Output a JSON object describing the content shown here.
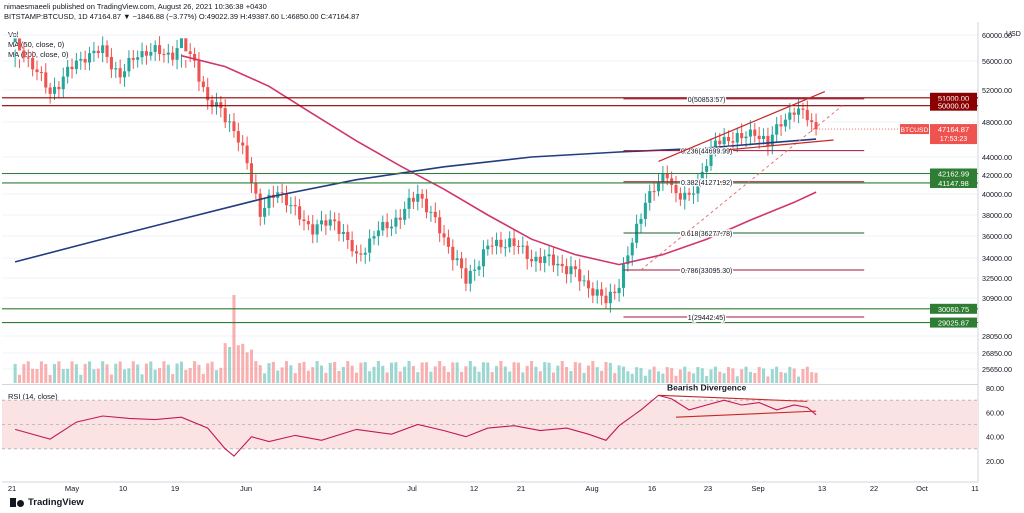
{
  "header": {
    "publisher_line": "nimaesmaeeli published on TradingView.com, August 26, 2021 10:36:38 +0430",
    "symbol_line": "BITSTAMP:BTCUSD, 1D  47164.87  ▼ −1846.88 (−3.77%)  O:49022.39  H:49387.60  L:46850.00  C:47164.87"
  },
  "indicators": {
    "vol": "Vol",
    "ma50": "MA (50, close, 0)",
    "ma200": "MA (200, close, 0)",
    "rsi": "RSI (14, close)"
  },
  "footer": {
    "logo_text": "TradingView"
  },
  "colors": {
    "up": "#26a69a",
    "down": "#ef5350",
    "ma50": "#d0356b",
    "ma200": "#233c80",
    "hline_red": "#8b0000",
    "hline_green": "#2e7d32",
    "fib_green": "#1b5e20",
    "fib_red": "#a0143c",
    "rsi_line": "#c2185b",
    "rsi_band": "#fbe3e3"
  },
  "chart_data": {
    "type": "candlestick",
    "price_axis": {
      "currency": "USD",
      "ticks": [
        60000,
        56000,
        52000,
        48000,
        44000,
        42000,
        40000,
        38000,
        36000,
        34000,
        32500,
        30900,
        28050,
        26850,
        25650
      ]
    },
    "time_axis": [
      "21",
      "May",
      "10",
      "19",
      "Jun",
      "14",
      "Jul",
      "12",
      "21",
      "Aug",
      "16",
      "23",
      "Sep",
      "13",
      "22",
      "Oct",
      "11"
    ],
    "horizontal_levels": [
      {
        "label": "51000.00",
        "price": 51000,
        "kind": "red"
      },
      {
        "label": "50000.00",
        "price": 50000,
        "kind": "red"
      },
      {
        "label": "42162.99",
        "price": 42162.99,
        "kind": "green"
      },
      {
        "label": "41147.98",
        "price": 41147.98,
        "kind": "green"
      },
      {
        "label": "30060.75",
        "price": 30060.75,
        "kind": "green"
      },
      {
        "label": "29025.87",
        "price": 29025.87,
        "kind": "green"
      }
    ],
    "fibonacci": [
      {
        "label": "0(50853.57)",
        "price": 50853.57
      },
      {
        "label": "0.236(44699.99)",
        "price": 44699.99
      },
      {
        "label": "0.382(41271.92)",
        "price": 41271.92
      },
      {
        "label": "0.618(36277.78)",
        "price": 36277.78
      },
      {
        "label": "0.786(33095.30)",
        "price": 33095.3
      },
      {
        "label": "1(29442.45)",
        "price": 29442.45
      }
    ],
    "last_price": {
      "label": "BTCUSD",
      "value": "47164.87",
      "countdown": "17:53:23"
    },
    "ohlc_points": [
      {
        "d": -8,
        "c": 58400
      },
      {
        "d": -4,
        "c": 55500
      },
      {
        "d": 0,
        "c": 51500
      },
      {
        "d": 4,
        "c": 54500
      },
      {
        "d": 8,
        "c": 56800
      },
      {
        "d": 12,
        "c": 57600
      },
      {
        "d": 16,
        "c": 53800
      },
      {
        "d": 20,
        "c": 57200
      },
      {
        "d": 24,
        "c": 57400
      },
      {
        "d": 28,
        "c": 57000
      },
      {
        "d": 30,
        "c": 58600
      },
      {
        "d": 33,
        "c": 56000
      },
      {
        "d": 36,
        "c": 50200
      },
      {
        "d": 39,
        "c": 49800
      },
      {
        "d": 42,
        "c": 46800
      },
      {
        "d": 45,
        "c": 43500
      },
      {
        "d": 48,
        "c": 38000
      },
      {
        "d": 52,
        "c": 40500
      },
      {
        "d": 56,
        "c": 38200
      },
      {
        "d": 60,
        "c": 36700
      },
      {
        "d": 65,
        "c": 37500
      },
      {
        "d": 70,
        "c": 34000
      },
      {
        "d": 75,
        "c": 36500
      },
      {
        "d": 80,
        "c": 37800
      },
      {
        "d": 84,
        "c": 40200
      },
      {
        "d": 90,
        "c": 35800
      },
      {
        "d": 95,
        "c": 32200
      },
      {
        "d": 100,
        "c": 35000
      },
      {
        "d": 105,
        "c": 35500
      },
      {
        "d": 110,
        "c": 34000
      },
      {
        "d": 115,
        "c": 33800
      },
      {
        "d": 120,
        "c": 32800
      },
      {
        "d": 125,
        "c": 31200
      },
      {
        "d": 127,
        "c": 30600
      },
      {
        "d": 130,
        "c": 32100
      },
      {
        "d": 133,
        "c": 35300
      },
      {
        "d": 136,
        "c": 39500
      },
      {
        "d": 139,
        "c": 41000
      },
      {
        "d": 141,
        "c": 42200
      },
      {
        "d": 143,
        "c": 40000
      },
      {
        "d": 146,
        "c": 39500
      },
      {
        "d": 149,
        "c": 42500
      },
      {
        "d": 152,
        "c": 45500
      },
      {
        "d": 155,
        "c": 46200
      },
      {
        "d": 158,
        "c": 46000
      },
      {
        "d": 161,
        "c": 47000
      },
      {
        "d": 164,
        "c": 45300
      },
      {
        "d": 167,
        "c": 48200
      },
      {
        "d": 170,
        "c": 49200
      },
      {
        "d": 173,
        "c": 48900
      },
      {
        "d": 175,
        "c": 47165
      }
    ],
    "ma50_points": [
      {
        "d": 30,
        "v": 56800
      },
      {
        "d": 40,
        "v": 55200
      },
      {
        "d": 50,
        "v": 52500
      },
      {
        "d": 60,
        "v": 49000
      },
      {
        "d": 70,
        "v": 45800
      },
      {
        "d": 80,
        "v": 43000
      },
      {
        "d": 90,
        "v": 40500
      },
      {
        "d": 100,
        "v": 38000
      },
      {
        "d": 110,
        "v": 35700
      },
      {
        "d": 120,
        "v": 34300
      },
      {
        "d": 130,
        "v": 33500
      },
      {
        "d": 140,
        "v": 34300
      },
      {
        "d": 150,
        "v": 35700
      },
      {
        "d": 160,
        "v": 37500
      },
      {
        "d": 170,
        "v": 39200
      },
      {
        "d": 175,
        "v": 40200
      }
    ],
    "ma200_points": [
      {
        "d": -8,
        "v": 33700
      },
      {
        "d": 10,
        "v": 35500
      },
      {
        "d": 30,
        "v": 37600
      },
      {
        "d": 50,
        "v": 39700
      },
      {
        "d": 70,
        "v": 41500
      },
      {
        "d": 90,
        "v": 42900
      },
      {
        "d": 110,
        "v": 44000
      },
      {
        "d": 130,
        "v": 44550
      },
      {
        "d": 150,
        "v": 45000
      },
      {
        "d": 165,
        "v": 45600
      },
      {
        "d": 175,
        "v": 46000
      }
    ],
    "rsi": {
      "ticks": [
        80.0,
        60.0,
        40.0,
        20.0
      ],
      "overbought": 70,
      "oversold": 30,
      "annotation": "Bearish Divergence",
      "points": [
        {
          "d": -8,
          "v": 46
        },
        {
          "d": 0,
          "v": 38
        },
        {
          "d": 6,
          "v": 52
        },
        {
          "d": 12,
          "v": 57
        },
        {
          "d": 18,
          "v": 55
        },
        {
          "d": 24,
          "v": 54
        },
        {
          "d": 30,
          "v": 56
        },
        {
          "d": 36,
          "v": 47
        },
        {
          "d": 40,
          "v": 30
        },
        {
          "d": 42,
          "v": 24
        },
        {
          "d": 46,
          "v": 40
        },
        {
          "d": 50,
          "v": 36
        },
        {
          "d": 56,
          "v": 41
        },
        {
          "d": 62,
          "v": 37
        },
        {
          "d": 70,
          "v": 46
        },
        {
          "d": 78,
          "v": 42
        },
        {
          "d": 84,
          "v": 50
        },
        {
          "d": 90,
          "v": 45
        },
        {
          "d": 95,
          "v": 40
        },
        {
          "d": 100,
          "v": 47
        },
        {
          "d": 106,
          "v": 49
        },
        {
          "d": 112,
          "v": 45
        },
        {
          "d": 118,
          "v": 47
        },
        {
          "d": 123,
          "v": 42
        },
        {
          "d": 127,
          "v": 37
        },
        {
          "d": 130,
          "v": 49
        },
        {
          "d": 135,
          "v": 62
        },
        {
          "d": 139,
          "v": 74
        },
        {
          "d": 142,
          "v": 71
        },
        {
          "d": 146,
          "v": 62
        },
        {
          "d": 150,
          "v": 66
        },
        {
          "d": 154,
          "v": 70
        },
        {
          "d": 158,
          "v": 66
        },
        {
          "d": 162,
          "v": 68
        },
        {
          "d": 166,
          "v": 62
        },
        {
          "d": 170,
          "v": 66
        },
        {
          "d": 173,
          "v": 64
        },
        {
          "d": 175,
          "v": 58
        }
      ]
    }
  }
}
